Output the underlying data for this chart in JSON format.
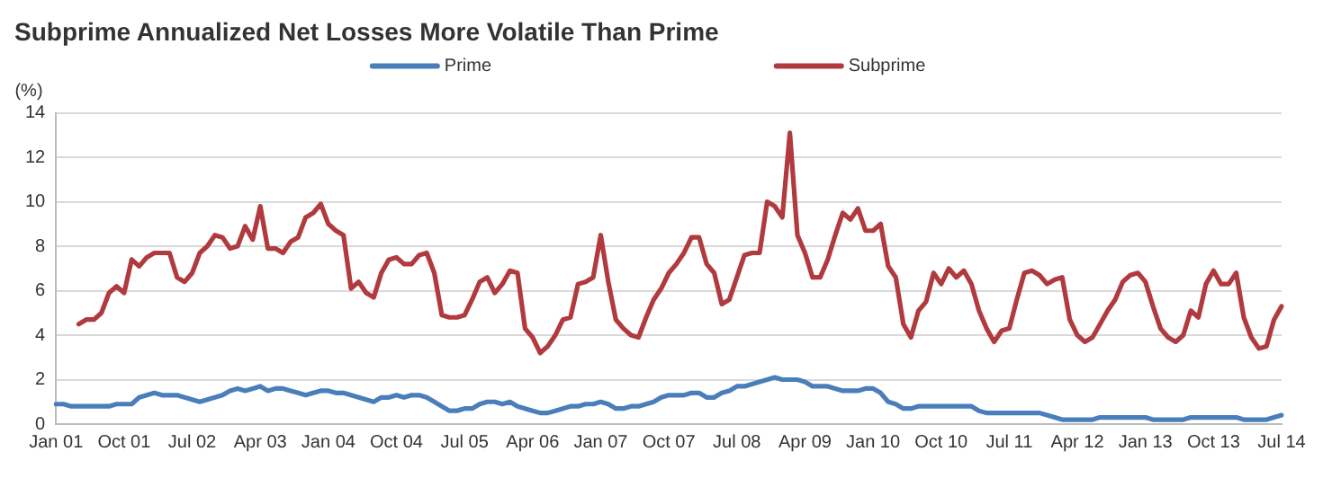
{
  "chart_data": {
    "type": "line",
    "title": "Subprime Annualized Net Losses More Volatile Than Prime",
    "ylabel": "(%)",
    "categories": [
      "Jan 01",
      null,
      null,
      null,
      null,
      null,
      null,
      null,
      null,
      "Oct 01",
      null,
      null,
      null,
      null,
      null,
      null,
      null,
      null,
      "Jul 02",
      null,
      null,
      null,
      null,
      null,
      null,
      null,
      null,
      "Apr 03",
      null,
      null,
      null,
      null,
      null,
      null,
      null,
      null,
      "Jan 04",
      null,
      null,
      null,
      null,
      null,
      null,
      null,
      null,
      "Oct 04",
      null,
      null,
      null,
      null,
      null,
      null,
      null,
      null,
      "Jul 05",
      null,
      null,
      null,
      null,
      null,
      null,
      null,
      null,
      "Apr 06",
      null,
      null,
      null,
      null,
      null,
      null,
      null,
      null,
      "Jan 07",
      null,
      null,
      null,
      null,
      null,
      null,
      null,
      null,
      "Oct 07",
      null,
      null,
      null,
      null,
      null,
      null,
      null,
      null,
      "Jul 08",
      null,
      null,
      null,
      null,
      null,
      null,
      null,
      null,
      "Apr 09",
      null,
      null,
      null,
      null,
      null,
      null,
      null,
      null,
      "Jan 10",
      null,
      null,
      null,
      null,
      null,
      null,
      null,
      null,
      "Oct 10",
      null,
      null,
      null,
      null,
      null,
      null,
      null,
      null,
      "Jul 11",
      null,
      null,
      null,
      null,
      null,
      null,
      null,
      null,
      "Apr 12",
      null,
      null,
      null,
      null,
      null,
      null,
      null,
      null,
      "Jan 13",
      null,
      null,
      null,
      null,
      null,
      null,
      null,
      null,
      "Oct 13",
      null,
      null,
      null,
      null,
      null,
      null,
      null,
      null,
      "Jul 14"
    ],
    "series": [
      {
        "name": "Prime",
        "color": "#4a7ebb",
        "values": [
          0.9,
          0.9,
          0.8,
          0.8,
          0.8,
          0.8,
          0.8,
          0.8,
          0.9,
          0.9,
          0.9,
          1.2,
          1.3,
          1.4,
          1.3,
          1.3,
          1.3,
          1.2,
          1.1,
          1.0,
          1.1,
          1.2,
          1.3,
          1.5,
          1.6,
          1.5,
          1.6,
          1.7,
          1.5,
          1.6,
          1.6,
          1.5,
          1.4,
          1.3,
          1.4,
          1.5,
          1.5,
          1.4,
          1.4,
          1.3,
          1.2,
          1.1,
          1.0,
          1.2,
          1.2,
          1.3,
          1.2,
          1.3,
          1.3,
          1.2,
          1.0,
          0.8,
          0.6,
          0.6,
          0.7,
          0.7,
          0.9,
          1.0,
          1.0,
          0.9,
          1.0,
          0.8,
          0.7,
          0.6,
          0.5,
          0.5,
          0.6,
          0.7,
          0.8,
          0.8,
          0.9,
          0.9,
          1.0,
          0.9,
          0.7,
          0.7,
          0.8,
          0.8,
          0.9,
          1.0,
          1.2,
          1.3,
          1.3,
          1.3,
          1.4,
          1.4,
          1.2,
          1.2,
          1.4,
          1.5,
          1.7,
          1.7,
          1.8,
          1.9,
          2.0,
          2.1,
          2.0,
          2.0,
          2.0,
          1.9,
          1.7,
          1.7,
          1.7,
          1.6,
          1.5,
          1.5,
          1.5,
          1.6,
          1.6,
          1.4,
          1.0,
          0.9,
          0.7,
          0.7,
          0.8,
          0.8,
          0.8,
          0.8,
          0.8,
          0.8,
          0.8,
          0.8,
          0.6,
          0.5,
          0.5,
          0.5,
          0.5,
          0.5,
          0.5,
          0.5,
          0.5,
          0.4,
          0.3,
          0.2,
          0.2,
          0.2,
          0.2,
          0.2,
          0.3,
          0.3,
          0.3,
          0.3,
          0.3,
          0.3,
          0.3,
          0.2,
          0.2,
          0.2,
          0.2,
          0.2,
          0.3,
          0.3,
          0.3,
          0.3,
          0.3,
          0.3,
          0.3,
          0.2,
          0.2,
          0.2,
          0.2,
          0.3,
          0.4
        ]
      },
      {
        "name": "Subprime",
        "color": "#b03a3e",
        "values": [
          null,
          null,
          null,
          4.5,
          4.7,
          4.7,
          5.0,
          5.9,
          6.2,
          5.9,
          7.4,
          7.1,
          7.5,
          7.7,
          7.7,
          7.7,
          6.6,
          6.4,
          6.8,
          7.7,
          8.0,
          8.5,
          8.4,
          7.9,
          8.0,
          8.9,
          8.3,
          9.8,
          7.9,
          7.9,
          7.7,
          8.2,
          8.4,
          9.3,
          9.5,
          9.9,
          9.0,
          8.7,
          8.5,
          6.1,
          6.4,
          5.9,
          5.7,
          6.8,
          7.4,
          7.5,
          7.2,
          7.2,
          7.6,
          7.7,
          6.8,
          4.9,
          4.8,
          4.8,
          4.9,
          5.6,
          6.4,
          6.6,
          5.9,
          6.3,
          6.9,
          6.8,
          4.3,
          3.9,
          3.2,
          3.5,
          4.0,
          4.7,
          4.8,
          6.3,
          6.4,
          6.6,
          8.5,
          6.4,
          4.7,
          4.3,
          4.0,
          3.9,
          4.8,
          5.6,
          6.1,
          6.8,
          7.2,
          7.7,
          8.4,
          8.4,
          7.2,
          6.8,
          5.4,
          5.6,
          6.6,
          7.6,
          7.7,
          7.7,
          10.0,
          9.8,
          9.3,
          13.1,
          8.5,
          7.7,
          6.6,
          6.6,
          7.4,
          8.5,
          9.5,
          9.2,
          9.7,
          8.7,
          8.7,
          9.0,
          7.1,
          6.6,
          4.5,
          3.9,
          5.1,
          5.5,
          6.8,
          6.3,
          7.0,
          6.6,
          6.9,
          6.3,
          5.1,
          4.3,
          3.7,
          4.2,
          4.3,
          5.6,
          6.8,
          6.9,
          6.7,
          6.3,
          6.5,
          6.6,
          4.7,
          4.0,
          3.7,
          3.9,
          4.5,
          5.1,
          5.6,
          6.4,
          6.7,
          6.8,
          6.4,
          5.3,
          4.3,
          3.9,
          3.7,
          4.0,
          5.1,
          4.8,
          6.3,
          6.9,
          6.3,
          6.3,
          6.8,
          4.8,
          3.9,
          3.4,
          3.5,
          4.7,
          5.3
        ]
      }
    ],
    "ylim": [
      0,
      14
    ],
    "yticks": [
      0,
      2,
      4,
      6,
      8,
      10,
      12,
      14
    ],
    "grid": "y",
    "legend": "top",
    "marker": "none",
    "line_style": "solid"
  }
}
